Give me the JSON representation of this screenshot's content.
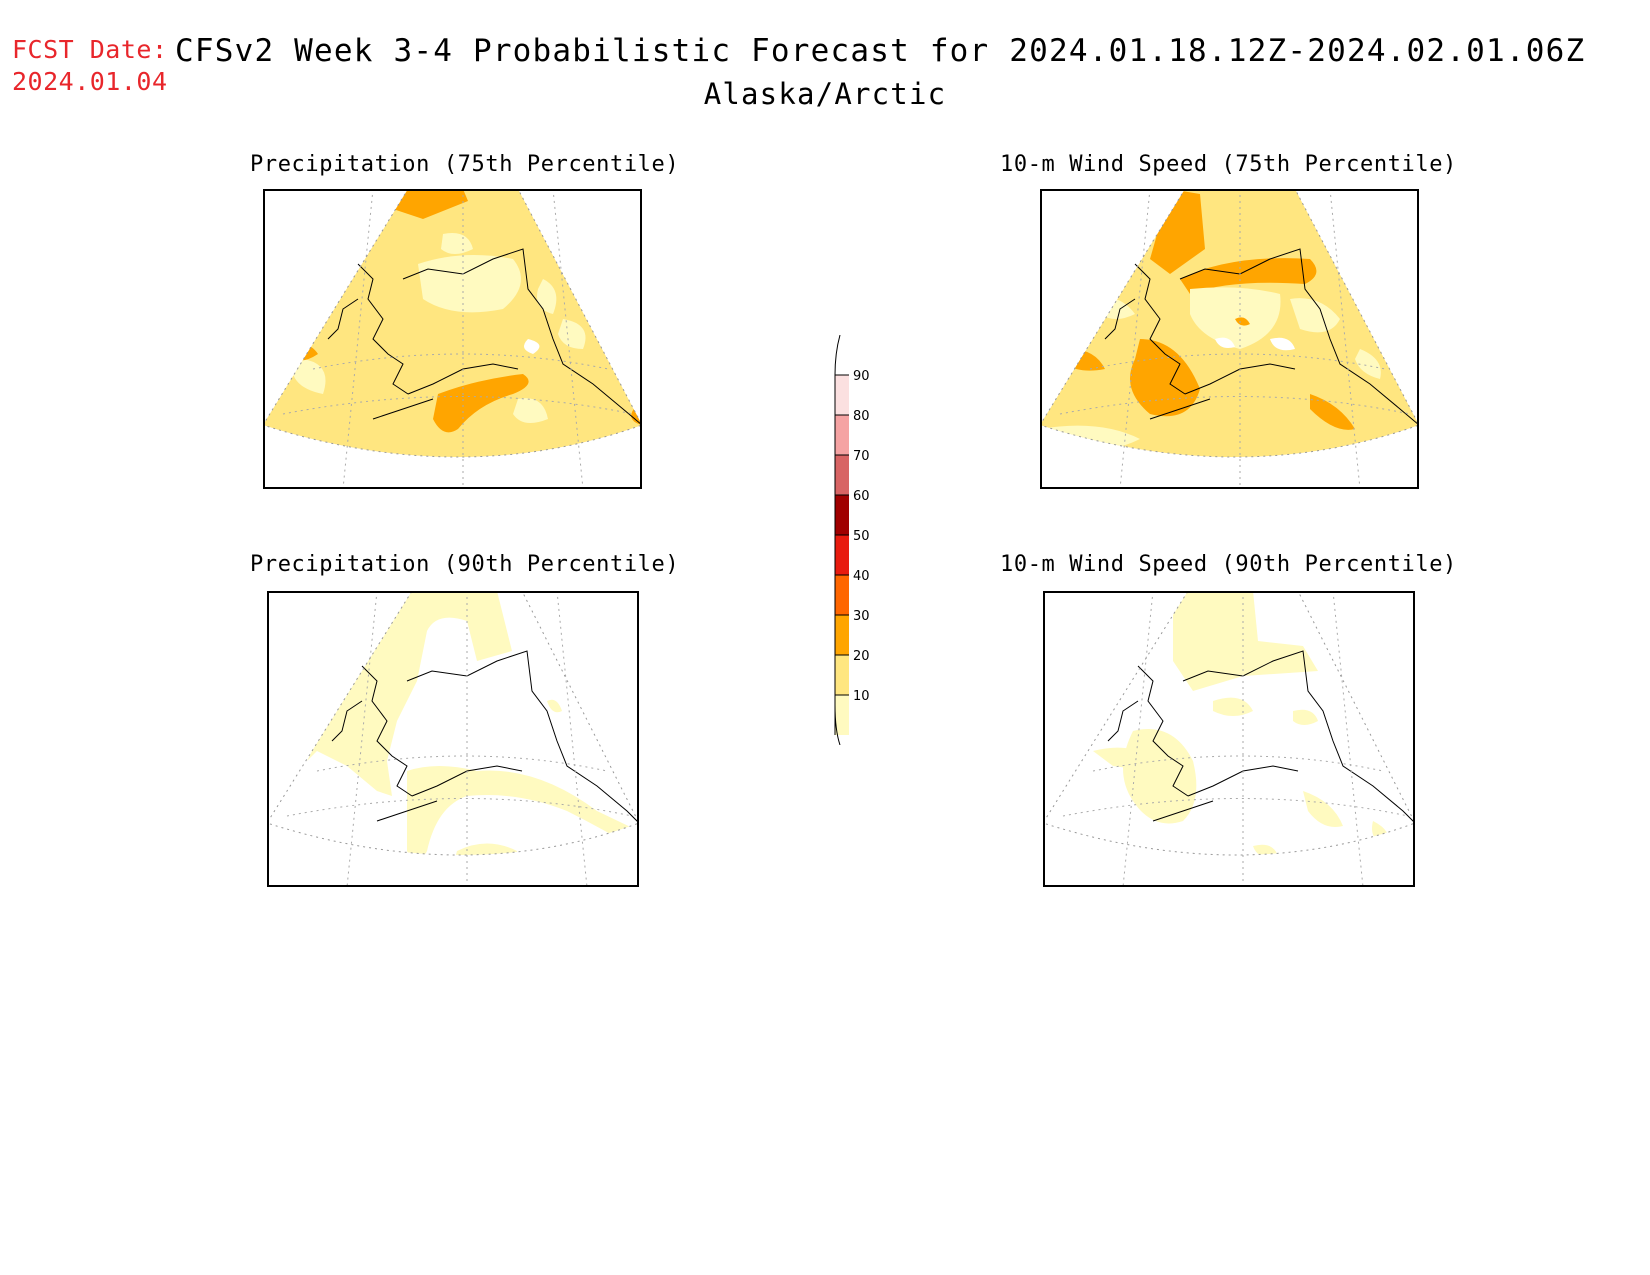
{
  "header": {
    "fcst_label": "FCST Date:",
    "fcst_date": "2024.01.04",
    "title": "CFSv2 Week 3-4 Probabilistic Forecast for 2024.01.18.12Z-2024.02.01.06Z",
    "subtitle": "Alaska/Arctic"
  },
  "panels": [
    {
      "title": "Precipitation (75th Percentile)"
    },
    {
      "title": "10-m Wind Speed (75th Percentile)"
    },
    {
      "title": "Precipitation (90th Percentile)"
    },
    {
      "title": "10-m Wind Speed (90th Percentile)"
    }
  ],
  "colorbar": {
    "levels": [
      "10",
      "20",
      "30",
      "40",
      "50",
      "60",
      "70",
      "80",
      "90"
    ],
    "colors": [
      "#fffac0",
      "#ffe680",
      "#ffa500",
      "#ff6600",
      "#e81b0f",
      "#a00000",
      "#d86464",
      "#f5a3a3",
      "#fbe0e0"
    ]
  },
  "fill_colors": {
    "light": "#fffac0",
    "medium": "#ffe680",
    "orange": "#ffa500"
  }
}
